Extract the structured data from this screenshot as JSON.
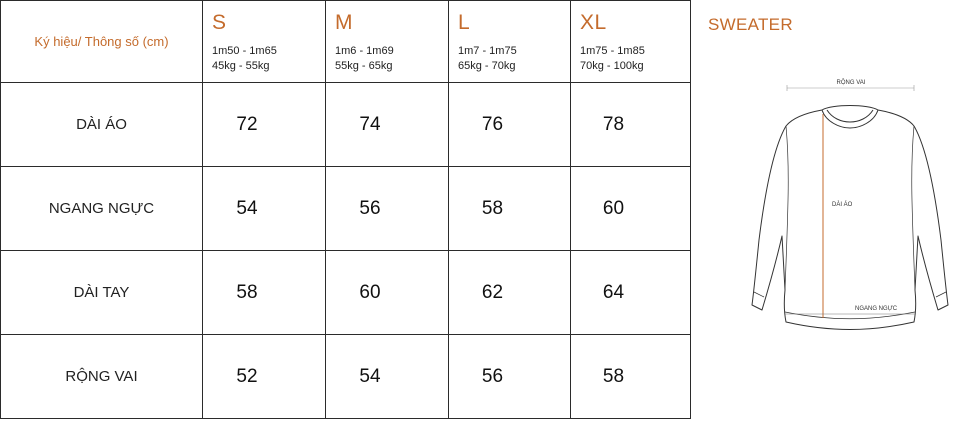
{
  "table": {
    "corner_label": "Ký hiệu/ Thông số (cm)",
    "sizes": [
      {
        "name": "S",
        "height": "1m50 - 1m65",
        "weight": "45kg - 55kg"
      },
      {
        "name": "M",
        "height": "1m6 - 1m69",
        "weight": "55kg - 65kg"
      },
      {
        "name": "L",
        "height": "1m7 - 1m75",
        "weight": "65kg - 70kg"
      },
      {
        "name": "XL",
        "height": "1m75 - 1m85",
        "weight": "70kg - 100kg"
      }
    ],
    "rows": [
      {
        "label": "DÀI ÁO",
        "values": [
          "72",
          "74",
          "76",
          "78"
        ]
      },
      {
        "label": "NGANG NGỰC",
        "values": [
          "54",
          "56",
          "58",
          "60"
        ]
      },
      {
        "label": "DÀI TAY",
        "values": [
          "58",
          "60",
          "62",
          "64"
        ]
      },
      {
        "label": "RỘNG VAI",
        "values": [
          "52",
          "54",
          "56",
          "58"
        ]
      }
    ]
  },
  "illustration": {
    "title": "SWEATER",
    "labels": {
      "shoulder": "RỘNG VAI",
      "length": "DÀI ÁO",
      "chest": "NGANG NGỰC"
    }
  },
  "colors": {
    "accent": "#c46b2c",
    "border": "#2b2b2b",
    "text": "#222222"
  }
}
